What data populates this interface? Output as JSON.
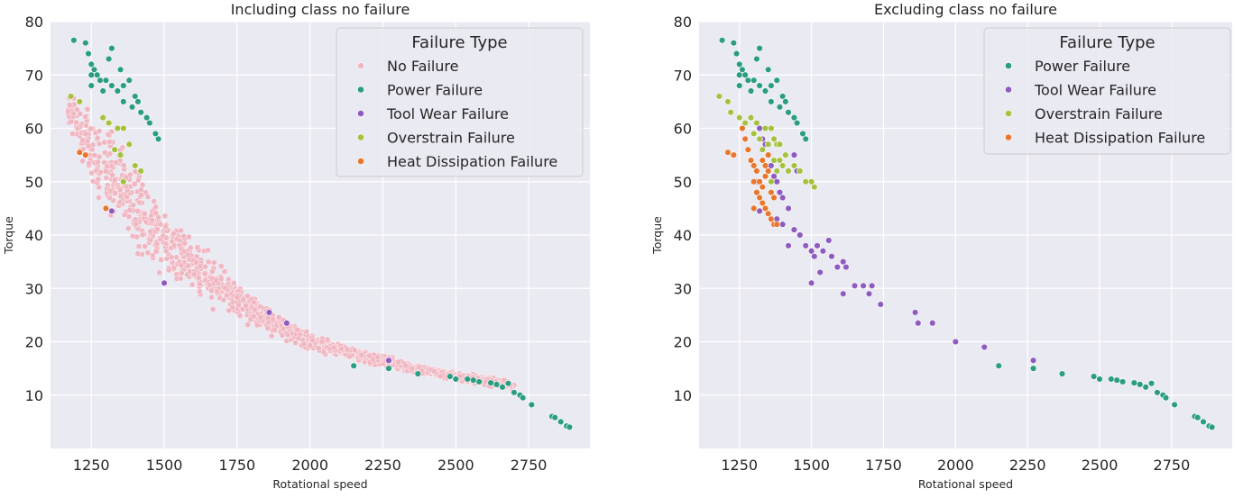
{
  "colors": {
    "background": "#eaeaf2",
    "grid": "#ffffff",
    "no_failure": "#f0b7c2",
    "power_failure": "#2a9d83",
    "tool_wear_failure": "#8f5bbf",
    "overstrain_failure": "#a4c23f",
    "heat_dissipation_failure": "#e8772e"
  },
  "chart_data": [
    {
      "type": "scatter",
      "title": "Including class no failure",
      "xlabel": "Rotational speed",
      "ylabel": "Torque",
      "xlim": [
        1110,
        2960
      ],
      "ylim": [
        0,
        80
      ],
      "xticks": [
        1250,
        1500,
        1750,
        2000,
        2250,
        2500,
        2750
      ],
      "yticks": [
        10,
        20,
        30,
        40,
        50,
        60,
        70,
        80
      ],
      "grid": true,
      "legend": {
        "title": "Failure Type",
        "placement": "top-right"
      },
      "no_failure_band": [
        [
          1170,
          58,
          70
        ],
        [
          1220,
          50,
          67
        ],
        [
          1280,
          44,
          64
        ],
        [
          1330,
          40,
          60
        ],
        [
          1400,
          35,
          56
        ],
        [
          1450,
          32,
          52
        ],
        [
          1500,
          30,
          48
        ],
        [
          1550,
          29,
          44
        ],
        [
          1600,
          27,
          41
        ],
        [
          1650,
          26,
          38
        ],
        [
          1700,
          25,
          35
        ],
        [
          1750,
          24,
          32
        ],
        [
          1800,
          22,
          30
        ],
        [
          1850,
          21,
          27.5
        ],
        [
          1900,
          20,
          25.5
        ],
        [
          1950,
          19,
          24
        ],
        [
          2000,
          18,
          22
        ],
        [
          2100,
          17,
          20
        ],
        [
          2200,
          15.5,
          18.5
        ],
        [
          2300,
          14.5,
          17
        ],
        [
          2400,
          13.5,
          15.5
        ],
        [
          2500,
          12.5,
          14.5
        ],
        [
          2600,
          11.5,
          13.8
        ],
        [
          2700,
          11,
          13
        ]
      ],
      "series": [
        {
          "name": "Power Failure",
          "color_key": "power_failure",
          "points": [
            [
              1190,
              76.5
            ],
            [
              1230,
              76
            ],
            [
              1240,
              74
            ],
            [
              1250,
              72
            ],
            [
              1260,
              71
            ],
            [
              1250,
              70
            ],
            [
              1270,
              70
            ],
            [
              1280,
              69
            ],
            [
              1300,
              69
            ],
            [
              1320,
              68
            ],
            [
              1250,
              68
            ],
            [
              1290,
              67
            ],
            [
              1340,
              67
            ],
            [
              1360,
              68
            ],
            [
              1310,
              73
            ],
            [
              1320,
              75
            ],
            [
              1350,
              71
            ],
            [
              1380,
              69
            ],
            [
              1400,
              66
            ],
            [
              1410,
              65
            ],
            [
              1440,
              62
            ],
            [
              1450,
              61
            ],
            [
              1470,
              59
            ],
            [
              1480,
              58
            ],
            [
              1390,
              64
            ],
            [
              1420,
              63
            ],
            [
              1360,
              65
            ],
            [
              2150,
              15.5
            ],
            [
              2270,
              15
            ],
            [
              2370,
              14
            ],
            [
              2480,
              13.5
            ],
            [
              2500,
              13
            ],
            [
              2540,
              13
            ],
            [
              2560,
              12.8
            ],
            [
              2580,
              12.5
            ],
            [
              2620,
              12.3
            ],
            [
              2640,
              12
            ],
            [
              2660,
              11.5
            ],
            [
              2680,
              12.2
            ],
            [
              2700,
              10.5
            ],
            [
              2720,
              10
            ],
            [
              2730,
              9.5
            ],
            [
              2760,
              8.2
            ],
            [
              2830,
              6
            ],
            [
              2840,
              5.8
            ],
            [
              2860,
              5
            ],
            [
              2880,
              4.2
            ],
            [
              2890,
              4
            ]
          ]
        },
        {
          "name": "Tool Wear Failure",
          "color_key": "tool_wear_failure",
          "points": [
            [
              1320,
              44.5
            ],
            [
              1500,
              31
            ],
            [
              1860,
              25.5
            ],
            [
              1920,
              23.5
            ],
            [
              2270,
              16.5
            ]
          ]
        },
        {
          "name": "Overstrain Failure",
          "color_key": "overstrain_failure",
          "points": [
            [
              1180,
              66
            ],
            [
              1210,
              65
            ],
            [
              1290,
              62
            ],
            [
              1310,
              61
            ],
            [
              1340,
              60
            ],
            [
              1360,
              60
            ],
            [
              1380,
              57
            ],
            [
              1330,
              56
            ],
            [
              1350,
              55
            ],
            [
              1400,
              53
            ],
            [
              1420,
              52
            ],
            [
              1360,
              50
            ]
          ]
        },
        {
          "name": "Heat Dissipation Failure",
          "color_key": "heat_dissipation_failure",
          "points": [
            [
              1210,
              55.5
            ],
            [
              1230,
              55
            ],
            [
              1300,
              45
            ]
          ]
        }
      ],
      "legend_entries": [
        "No Failure",
        "Power Failure",
        "Tool Wear Failure",
        "Overstrain Failure",
        "Heat Dissipation Failure"
      ]
    },
    {
      "type": "scatter",
      "title": "Excluding class no failure",
      "xlabel": "Rotational speed",
      "ylabel": "Torque",
      "xlim": [
        1110,
        2960
      ],
      "ylim": [
        0,
        80
      ],
      "xticks": [
        1250,
        1500,
        1750,
        2000,
        2250,
        2500,
        2750
      ],
      "yticks": [
        10,
        20,
        30,
        40,
        50,
        60,
        70,
        80
      ],
      "grid": true,
      "legend": {
        "title": "Failure Type",
        "placement": "top-right"
      },
      "series": [
        {
          "name": "Power Failure",
          "color_key": "power_failure",
          "points": [
            [
              1190,
              76.5
            ],
            [
              1230,
              76
            ],
            [
              1240,
              74
            ],
            [
              1250,
              72
            ],
            [
              1260,
              71
            ],
            [
              1250,
              70
            ],
            [
              1270,
              70
            ],
            [
              1280,
              69
            ],
            [
              1300,
              69
            ],
            [
              1320,
              68
            ],
            [
              1250,
              68
            ],
            [
              1290,
              67
            ],
            [
              1340,
              67
            ],
            [
              1360,
              68
            ],
            [
              1310,
              73
            ],
            [
              1320,
              75
            ],
            [
              1350,
              71
            ],
            [
              1380,
              69
            ],
            [
              1400,
              66
            ],
            [
              1410,
              65
            ],
            [
              1440,
              62
            ],
            [
              1450,
              61
            ],
            [
              1470,
              59
            ],
            [
              1480,
              58
            ],
            [
              1390,
              64
            ],
            [
              1420,
              63
            ],
            [
              1360,
              65
            ],
            [
              2150,
              15.5
            ],
            [
              2270,
              15
            ],
            [
              2370,
              14
            ],
            [
              2480,
              13.5
            ],
            [
              2500,
              13
            ],
            [
              2540,
              13
            ],
            [
              2560,
              12.8
            ],
            [
              2580,
              12.5
            ],
            [
              2620,
              12.3
            ],
            [
              2640,
              12
            ],
            [
              2660,
              11.5
            ],
            [
              2680,
              12.2
            ],
            [
              2700,
              10.5
            ],
            [
              2720,
              10
            ],
            [
              2730,
              9.5
            ],
            [
              2760,
              8.2
            ],
            [
              2830,
              6
            ],
            [
              2840,
              5.8
            ],
            [
              2860,
              5
            ],
            [
              2880,
              4.2
            ],
            [
              2890,
              4
            ]
          ]
        },
        {
          "name": "Tool Wear Failure",
          "color_key": "tool_wear_failure",
          "points": [
            [
              1320,
              60
            ],
            [
              1330,
              58
            ],
            [
              1340,
              57
            ],
            [
              1350,
              55
            ],
            [
              1360,
              53
            ],
            [
              1370,
              51
            ],
            [
              1380,
              50
            ],
            [
              1390,
              48
            ],
            [
              1400,
              47
            ],
            [
              1420,
              45
            ],
            [
              1440,
              55
            ],
            [
              1450,
              52
            ],
            [
              1310,
              50
            ],
            [
              1320,
              44.5
            ],
            [
              1380,
              43
            ],
            [
              1400,
              42
            ],
            [
              1420,
              38
            ],
            [
              1440,
              41
            ],
            [
              1460,
              40
            ],
            [
              1480,
              38
            ],
            [
              1500,
              37
            ],
            [
              1510,
              36
            ],
            [
              1520,
              38
            ],
            [
              1540,
              37
            ],
            [
              1560,
              39
            ],
            [
              1570,
              36
            ],
            [
              1590,
              34
            ],
            [
              1610,
              35
            ],
            [
              1620,
              34
            ],
            [
              1500,
              31
            ],
            [
              1530,
              33
            ],
            [
              1610,
              29
            ],
            [
              1650,
              30.5
            ],
            [
              1680,
              30.5
            ],
            [
              1700,
              29
            ],
            [
              1710,
              30.5
            ],
            [
              1740,
              27
            ],
            [
              1860,
              25.5
            ],
            [
              1870,
              23.5
            ],
            [
              1920,
              23.5
            ],
            [
              2000,
              20
            ],
            [
              2100,
              19
            ],
            [
              2270,
              16.5
            ]
          ]
        },
        {
          "name": "Overstrain Failure",
          "color_key": "overstrain_failure",
          "points": [
            [
              1180,
              66
            ],
            [
              1210,
              65
            ],
            [
              1220,
              63
            ],
            [
              1250,
              62
            ],
            [
              1270,
              61
            ],
            [
              1290,
              62
            ],
            [
              1310,
              61
            ],
            [
              1300,
              59
            ],
            [
              1320,
              58
            ],
            [
              1340,
              60
            ],
            [
              1360,
              60
            ],
            [
              1350,
              57
            ],
            [
              1370,
              58
            ],
            [
              1380,
              57
            ],
            [
              1330,
              56
            ],
            [
              1350,
              55
            ],
            [
              1370,
              54
            ],
            [
              1390,
              54
            ],
            [
              1400,
              53
            ],
            [
              1420,
              52
            ],
            [
              1410,
              55
            ],
            [
              1390,
              57
            ],
            [
              1360,
              50
            ],
            [
              1380,
              52
            ],
            [
              1440,
              53
            ],
            [
              1460,
              52
            ],
            [
              1480,
              50
            ],
            [
              1500,
              50
            ],
            [
              1510,
              49
            ]
          ]
        },
        {
          "name": "Heat Dissipation Failure",
          "color_key": "heat_dissipation_failure",
          "points": [
            [
              1210,
              55.5
            ],
            [
              1230,
              55
            ],
            [
              1260,
              60
            ],
            [
              1270,
              58
            ],
            [
              1280,
              56
            ],
            [
              1290,
              54
            ],
            [
              1300,
              53
            ],
            [
              1310,
              52
            ],
            [
              1300,
              50
            ],
            [
              1310,
              48
            ],
            [
              1320,
              47
            ],
            [
              1330,
              46
            ],
            [
              1340,
              45
            ],
            [
              1300,
              45
            ],
            [
              1320,
              50
            ],
            [
              1330,
              49
            ],
            [
              1340,
              51
            ],
            [
              1350,
              52
            ],
            [
              1360,
              48
            ],
            [
              1370,
              47
            ],
            [
              1350,
              44
            ],
            [
              1360,
              43
            ],
            [
              1370,
              42
            ],
            [
              1380,
              42
            ],
            [
              1340,
              53
            ],
            [
              1350,
              55
            ],
            [
              1330,
              54
            ]
          ]
        }
      ],
      "legend_entries": [
        "Power Failure",
        "Tool Wear Failure",
        "Overstrain Failure",
        "Heat Dissipation Failure"
      ]
    }
  ]
}
